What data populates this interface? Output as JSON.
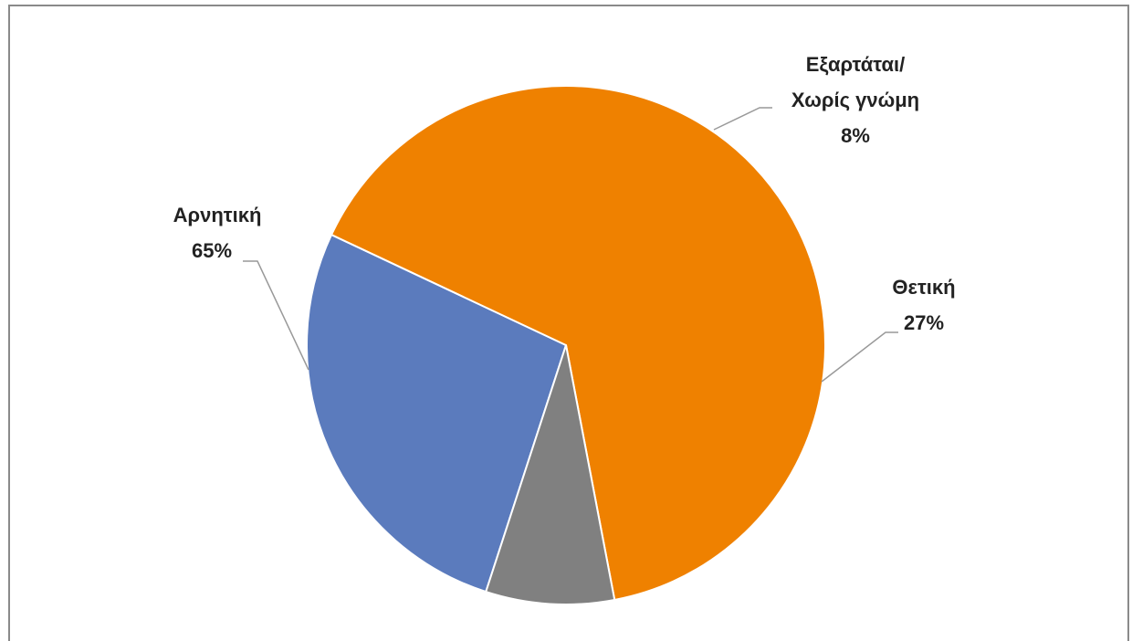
{
  "chart_data": {
    "type": "pie",
    "title": "",
    "start_angle_deg": 108,
    "direction": "clockwise",
    "slices": [
      {
        "category_lines": [
          "Θετική"
        ],
        "percent_label": "27%",
        "value": 27,
        "color": "#5b7bbd"
      },
      {
        "category_lines": [
          "Αρνητική"
        ],
        "percent_label": "65%",
        "value": 65,
        "color": "#ef8100"
      },
      {
        "category_lines": [
          "Εξαρτάται/",
          "Χωρίς γνώμη"
        ],
        "percent_label": "8%",
        "value": 8,
        "color": "#808080"
      }
    ]
  }
}
